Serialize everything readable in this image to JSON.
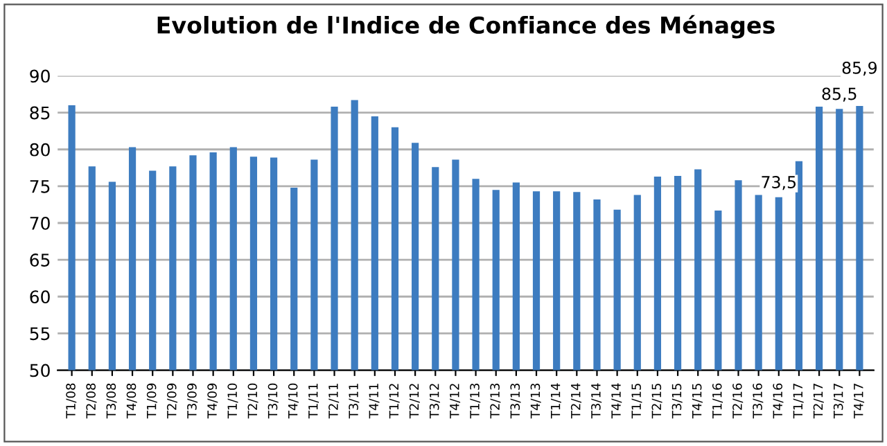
{
  "chart_data": {
    "type": "bar",
    "title": "Evolution de l'Indice de Confiance des Ménages",
    "categories": [
      "T1/08",
      "T2/08",
      "T3/08",
      "T4/08",
      "T1/09",
      "T2/09",
      "T3/09",
      "T4/09",
      "T1/10",
      "T2/10",
      "T3/10",
      "T4/10",
      "T1/11",
      "T2/11",
      "T3/11",
      "T4/11",
      "T1/12",
      "T2/12",
      "T3/12",
      "T4/12",
      "T1/13",
      "T2/13",
      "T3/13",
      "T4/13",
      "T1/14",
      "T2/14",
      "T3/14",
      "T4/14",
      "T1/15",
      "T2/15",
      "T3/15",
      "T4/15",
      "T1/16",
      "T2/16",
      "T3/16",
      "T4/16",
      "T1/17",
      "T2/17",
      "T3/17",
      "T4/17"
    ],
    "values": [
      86.0,
      77.7,
      75.6,
      80.3,
      77.1,
      77.7,
      79.2,
      79.6,
      80.3,
      79.0,
      78.9,
      74.8,
      78.6,
      85.8,
      86.7,
      84.5,
      83.0,
      80.9,
      77.6,
      78.6,
      76.0,
      74.5,
      75.5,
      74.3,
      74.3,
      74.2,
      73.2,
      71.8,
      73.8,
      76.3,
      76.4,
      77.3,
      71.7,
      75.8,
      73.8,
      73.5,
      78.4,
      85.8,
      85.5,
      85.9
    ],
    "value_labels": [
      null,
      null,
      null,
      null,
      null,
      null,
      null,
      null,
      null,
      null,
      null,
      null,
      null,
      null,
      null,
      null,
      null,
      null,
      null,
      null,
      null,
      null,
      null,
      null,
      null,
      null,
      null,
      null,
      null,
      null,
      null,
      null,
      null,
      null,
      null,
      "73,5",
      null,
      null,
      "85,5",
      "85,9"
    ],
    "color": "#3d7cc0",
    "ylim": [
      50,
      90
    ],
    "yticks": [
      50,
      55,
      60,
      65,
      70,
      75,
      80,
      85,
      90
    ],
    "grid": "y",
    "legend": false
  }
}
